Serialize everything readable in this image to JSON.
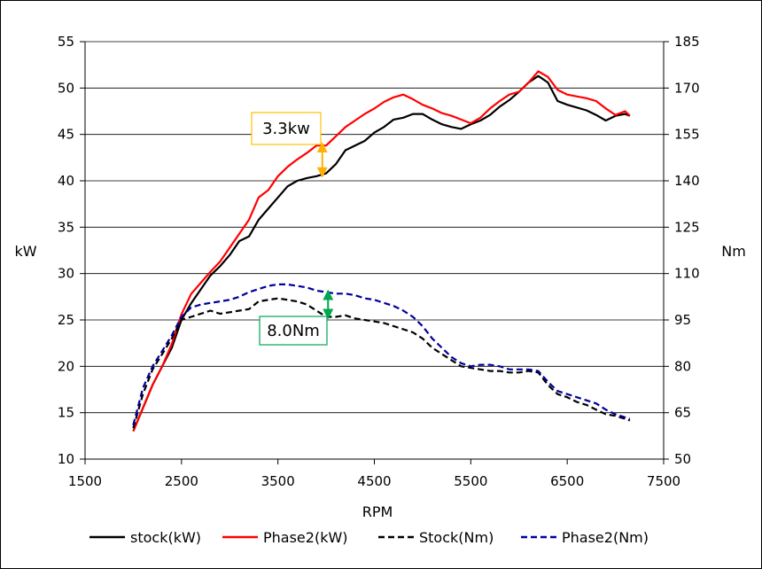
{
  "chart_data": {
    "type": "line",
    "title": "",
    "xlabel": "RPM",
    "ylabel_left": "kW",
    "ylabel_right": "Nm",
    "xlim": [
      1500,
      7500
    ],
    "xticks": [
      1500,
      2500,
      3500,
      4500,
      5500,
      6500,
      7500
    ],
    "ylim_left": [
      10,
      55
    ],
    "yticks_left": [
      10,
      15,
      20,
      25,
      30,
      35,
      40,
      45,
      50,
      55
    ],
    "ylim_right": [
      50,
      185
    ],
    "yticks_right": [
      50,
      65,
      80,
      95,
      110,
      125,
      140,
      155,
      170,
      185
    ],
    "grid": "horizontal",
    "legend_position": "bottom",
    "series": [
      {
        "name": "stock(kW)",
        "axis": "left",
        "color": "#000000",
        "dash": "solid",
        "x": [
          2000,
          2100,
          2200,
          2300,
          2400,
          2500,
          2600,
          2700,
          2800,
          2900,
          3000,
          3100,
          3200,
          3300,
          3400,
          3500,
          3600,
          3700,
          3800,
          3900,
          4000,
          4100,
          4200,
          4300,
          4400,
          4500,
          4600,
          4700,
          4800,
          4900,
          5000,
          5100,
          5200,
          5300,
          5400,
          5500,
          5600,
          5700,
          5800,
          5900,
          6000,
          6100,
          6200,
          6300,
          6400,
          6500,
          6600,
          6700,
          6800,
          6900,
          7000,
          7100,
          7150
        ],
        "values": [
          13.0,
          15.5,
          18.0,
          20.0,
          22.0,
          25.0,
          26.8,
          28.3,
          29.8,
          30.8,
          32.0,
          33.5,
          34.0,
          35.8,
          37.0,
          38.2,
          39.4,
          40.0,
          40.3,
          40.5,
          40.8,
          41.8,
          43.3,
          43.8,
          44.3,
          45.2,
          45.8,
          46.6,
          46.8,
          47.2,
          47.2,
          46.6,
          46.1,
          45.8,
          45.6,
          46.1,
          46.5,
          47.1,
          48.0,
          48.7,
          49.6,
          50.6,
          51.3,
          50.6,
          48.6,
          48.2,
          47.9,
          47.6,
          47.1,
          46.5,
          47.0,
          47.2,
          47.0
        ]
      },
      {
        "name": "Phase2(kW)",
        "axis": "left",
        "color": "#ff0000",
        "dash": "solid",
        "x": [
          2000,
          2100,
          2200,
          2300,
          2400,
          2500,
          2600,
          2700,
          2800,
          2900,
          3000,
          3100,
          3200,
          3300,
          3400,
          3500,
          3600,
          3700,
          3800,
          3900,
          4000,
          4100,
          4200,
          4300,
          4400,
          4500,
          4600,
          4700,
          4800,
          4900,
          5000,
          5100,
          5200,
          5300,
          5400,
          5500,
          5600,
          5700,
          5800,
          5900,
          6000,
          6100,
          6200,
          6300,
          6400,
          6500,
          6600,
          6700,
          6800,
          6900,
          7000,
          7100,
          7150
        ],
        "values": [
          13.0,
          15.5,
          18.0,
          20.0,
          22.4,
          25.6,
          27.8,
          29.0,
          30.2,
          31.3,
          32.8,
          34.3,
          35.8,
          38.2,
          39.0,
          40.5,
          41.5,
          42.3,
          43.0,
          43.8,
          43.8,
          44.8,
          45.8,
          46.5,
          47.2,
          47.8,
          48.5,
          49.0,
          49.3,
          48.8,
          48.2,
          47.8,
          47.3,
          47.0,
          46.6,
          46.2,
          46.8,
          47.8,
          48.6,
          49.3,
          49.6,
          50.6,
          51.8,
          51.2,
          49.8,
          49.3,
          49.1,
          48.9,
          48.6,
          47.8,
          47.1,
          47.5,
          47.0
        ]
      },
      {
        "name": "Stock(Nm)",
        "axis": "right",
        "color": "#000000",
        "dash": "dashed",
        "x": [
          2000,
          2100,
          2200,
          2300,
          2400,
          2500,
          2600,
          2700,
          2800,
          2900,
          3000,
          3100,
          3200,
          3300,
          3400,
          3500,
          3600,
          3700,
          3800,
          3900,
          4000,
          4100,
          4200,
          4300,
          4400,
          4500,
          4600,
          4700,
          4800,
          4900,
          5000,
          5100,
          5200,
          5300,
          5400,
          5500,
          5600,
          5700,
          5800,
          5900,
          6000,
          6100,
          6200,
          6300,
          6400,
          6500,
          6600,
          6700,
          6800,
          6900,
          7000,
          7100,
          7150
        ],
        "values": [
          60,
          71,
          79,
          84,
          89,
          95,
          96,
          97,
          98,
          97,
          97.5,
          98,
          98.5,
          101,
          101.5,
          102,
          101.5,
          101,
          100,
          98,
          96,
          96,
          96.5,
          95.5,
          95,
          94.5,
          94,
          93,
          92,
          91,
          89,
          86,
          84,
          82,
          80,
          79.5,
          79,
          78.5,
          78.5,
          78,
          78,
          78.5,
          78,
          74,
          71,
          70,
          68.5,
          67.5,
          66,
          64.5,
          64,
          63,
          62.5
        ]
      },
      {
        "name": "Phase2(Nm)",
        "axis": "right",
        "color": "#00009c",
        "dash": "dashed",
        "x": [
          2000,
          2100,
          2200,
          2300,
          2400,
          2500,
          2600,
          2700,
          2800,
          2900,
          3000,
          3100,
          3200,
          3300,
          3400,
          3500,
          3600,
          3700,
          3800,
          3900,
          4000,
          4100,
          4200,
          4300,
          4400,
          4500,
          4600,
          4700,
          4800,
          4900,
          5000,
          5100,
          5200,
          5300,
          5400,
          5500,
          5600,
          5700,
          5800,
          5900,
          6000,
          6100,
          6200,
          6300,
          6400,
          6500,
          6600,
          6700,
          6800,
          6900,
          7000,
          7100,
          7150
        ],
        "values": [
          61,
          73,
          80,
          85,
          90,
          96,
          99,
          100,
          100.5,
          101,
          101.5,
          102.5,
          104,
          105,
          106,
          106.5,
          106.5,
          106,
          105.5,
          104.5,
          104,
          103.5,
          103.5,
          103,
          102,
          101.5,
          100.5,
          99.5,
          98,
          96,
          93,
          89,
          86,
          83,
          81,
          80,
          80.5,
          80.5,
          80,
          79,
          79,
          79,
          78.5,
          75,
          72,
          71,
          70,
          69,
          68,
          66,
          64.5,
          63.5,
          63
        ]
      }
    ],
    "annotations": [
      {
        "text": "3.3kw",
        "axis": "left",
        "x": 3960,
        "y_from": 40.6,
        "y_to": 43.9,
        "color": "#ffb000",
        "box_color": "#ffc000"
      },
      {
        "text": "8.0Nm",
        "axis": "right",
        "x": 4020,
        "y_from": 96.0,
        "y_to": 104.0,
        "color": "#00a650",
        "box_color": "#00a650"
      }
    ]
  }
}
